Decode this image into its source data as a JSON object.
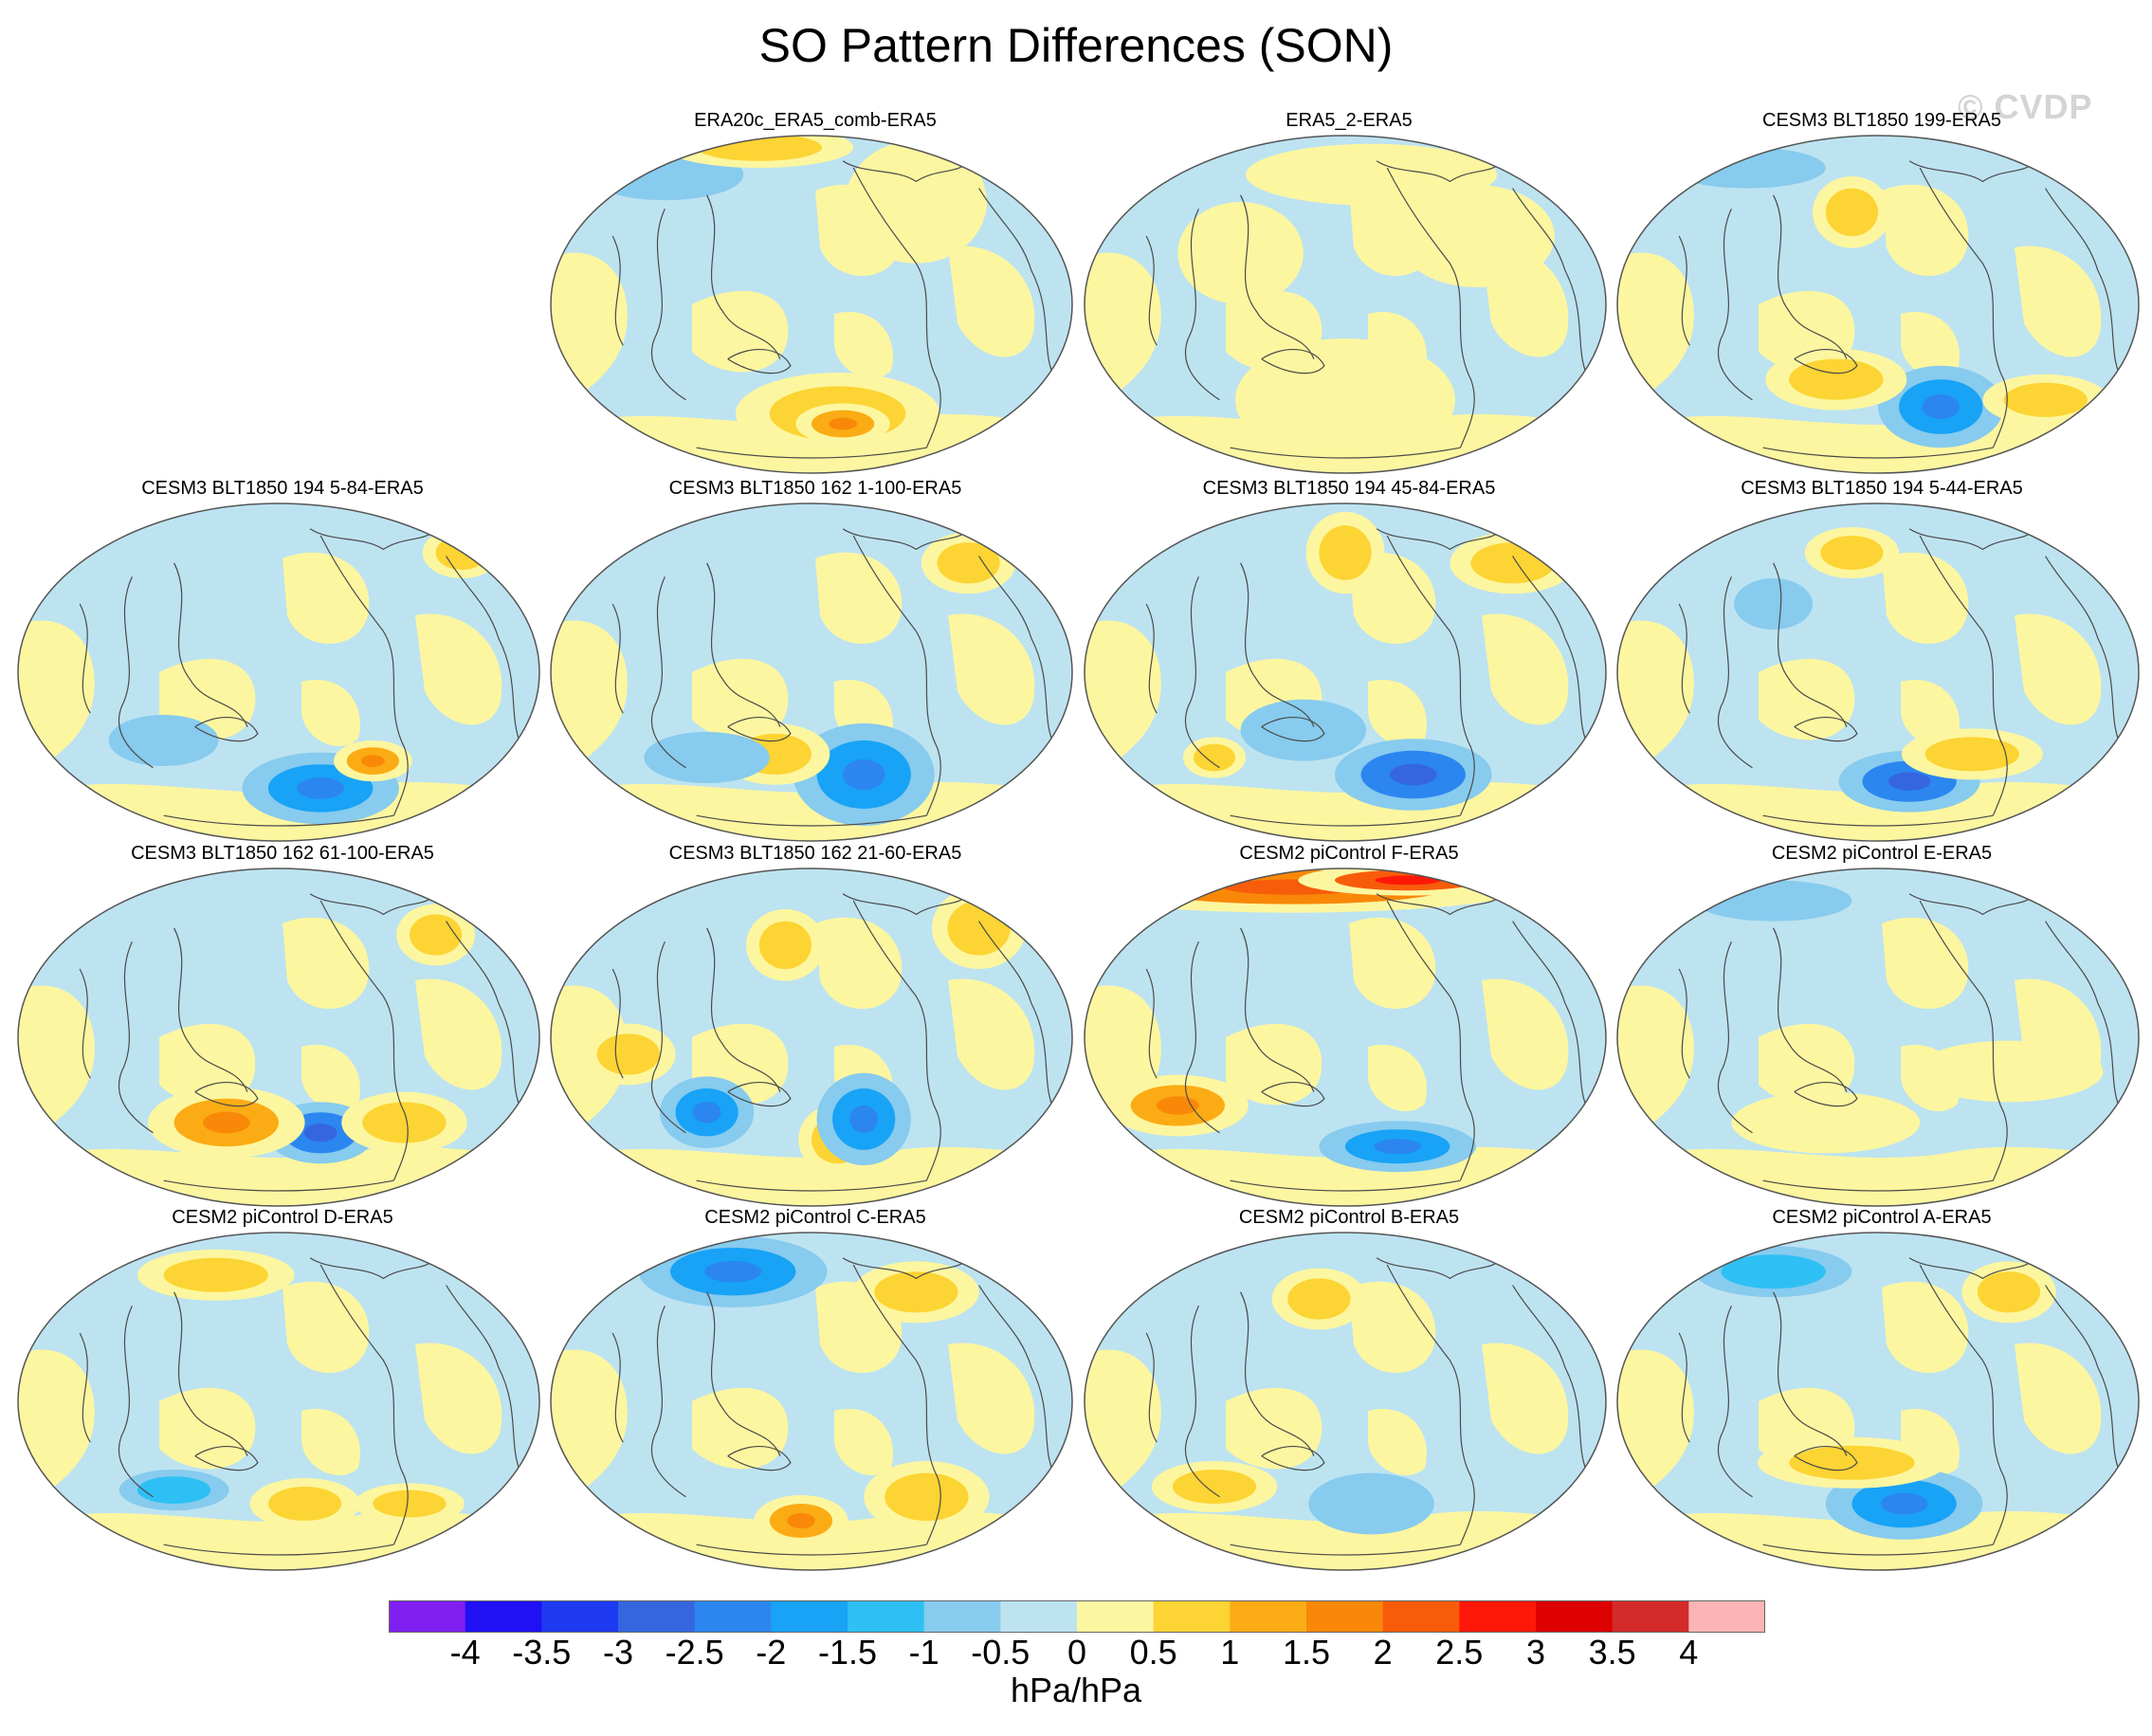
{
  "title": "SO Pattern Differences (SON)",
  "watermark": "© CVDP",
  "colors": {
    "levels": [
      "#7f1ff0",
      "#2010f4",
      "#1d3af0",
      "#3566e0",
      "#2b86f0",
      "#18a3f6",
      "#2ec0f4",
      "#87cbee",
      "#bde3f1",
      "#fdf6a0",
      "#fcd433",
      "#fbac14",
      "#f98808",
      "#f75c0a",
      "#ff1808",
      "#dc0000",
      "#d42a2a",
      "#fcb4b4"
    ],
    "outline": "#555555",
    "coast": "#4a4a4a"
  },
  "panels": [
    {
      "label": "ERA20c_ERA5_comb-ERA5",
      "grid": "r0c1"
    },
    {
      "label": "ERA5_2-ERA5",
      "grid": "r0c2"
    },
    {
      "label": "CESM3 BLT1850 199-ERA5",
      "grid": "r0c3"
    },
    {
      "label": "CESM3 BLT1850 194 5-84-ERA5",
      "grid": "r1c0"
    },
    {
      "label": "CESM3 BLT1850 162 1-100-ERA5",
      "grid": "r1c1"
    },
    {
      "label": "CESM3 BLT1850 194 45-84-ERA5",
      "grid": "r1c2"
    },
    {
      "label": "CESM3 BLT1850 194 5-44-ERA5",
      "grid": "r1c3"
    },
    {
      "label": "CESM3 BLT1850 162 61-100-ERA5",
      "grid": "r2c0"
    },
    {
      "label": "CESM3 BLT1850 162 21-60-ERA5",
      "grid": "r2c1"
    },
    {
      "label": "CESM2 piControl F-ERA5",
      "grid": "r2c2"
    },
    {
      "label": "CESM2 piControl E-ERA5",
      "grid": "r2c3"
    },
    {
      "label": "CESM2 piControl D-ERA5",
      "grid": "r3c0"
    },
    {
      "label": "CESM2 piControl C-ERA5",
      "grid": "r3c1"
    },
    {
      "label": "CESM2 piControl B-ERA5",
      "grid": "r3c2"
    },
    {
      "label": "CESM2 piControl A-ERA5",
      "grid": "r3c3"
    }
  ],
  "colorbar": {
    "labels": [
      "-4",
      "-3.5",
      "-3",
      "-2.5",
      "-2",
      "-1.5",
      "-1",
      "-0.5",
      "0",
      "0.5",
      "1",
      "1.5",
      "2",
      "2.5",
      "3",
      "3.5",
      "4"
    ],
    "unit": "hPa/hPa"
  }
}
